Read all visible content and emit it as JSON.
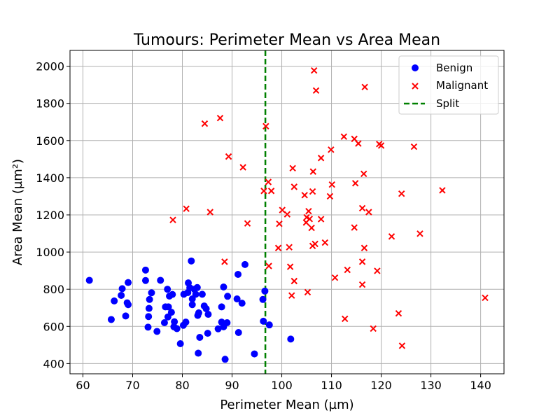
{
  "chart_data": {
    "type": "scatter",
    "title": "Tumours: Perimeter Mean vs Area Mean",
    "xlabel": "Perimeter Mean (µm)",
    "ylabel": "Area Mean (µm²)",
    "xlim": [
      57.4,
      144.7
    ],
    "ylim": [
      345,
      2085
    ],
    "xticks": [
      60,
      70,
      80,
      90,
      100,
      110,
      120,
      130,
      140
    ],
    "yticks": [
      400,
      600,
      800,
      1000,
      1200,
      1400,
      1600,
      1800,
      2000
    ],
    "grid": true,
    "legend_position": "top-right",
    "split": {
      "name": "Split",
      "x": 96.7,
      "color": "#008000"
    },
    "series": [
      {
        "name": "Benign",
        "marker": "circle",
        "color": "#0000ff",
        "points": [
          [
            61.3,
            848
          ],
          [
            65.7,
            637
          ],
          [
            66.3,
            737
          ],
          [
            67.7,
            767
          ],
          [
            67.9,
            803
          ],
          [
            68.6,
            656
          ],
          [
            68.9,
            727
          ],
          [
            69.1,
            717
          ],
          [
            69.1,
            836
          ],
          [
            72.6,
            903
          ],
          [
            72.6,
            847
          ],
          [
            73.1,
            596
          ],
          [
            73.2,
            653
          ],
          [
            73.3,
            697
          ],
          [
            73.4,
            745
          ],
          [
            73.8,
            781
          ],
          [
            74.9,
            573
          ],
          [
            75.6,
            848
          ],
          [
            76.4,
            620
          ],
          [
            76.6,
            705
          ],
          [
            77.0,
            800
          ],
          [
            77.1,
            651
          ],
          [
            77.2,
            705
          ],
          [
            77.4,
            763
          ],
          [
            77.8,
            676
          ],
          [
            78.0,
            772
          ],
          [
            78.3,
            598
          ],
          [
            78.4,
            625
          ],
          [
            78.9,
            588
          ],
          [
            79.6,
            507
          ],
          [
            80.2,
            606
          ],
          [
            80.3,
            773
          ],
          [
            80.7,
            623
          ],
          [
            81.1,
            782
          ],
          [
            81.2,
            834
          ],
          [
            81.5,
            808
          ],
          [
            81.8,
            952
          ],
          [
            82.0,
            748
          ],
          [
            82.0,
            717
          ],
          [
            82.4,
            800
          ],
          [
            82.7,
            773
          ],
          [
            83.0,
            809
          ],
          [
            83.1,
            659
          ],
          [
            83.2,
            456
          ],
          [
            83.3,
            673
          ],
          [
            83.5,
            541
          ],
          [
            84.0,
            773
          ],
          [
            84.4,
            710
          ],
          [
            84.8,
            695
          ],
          [
            85.1,
            563
          ],
          [
            85.2,
            665
          ],
          [
            87.2,
            587
          ],
          [
            87.9,
            623
          ],
          [
            87.9,
            705
          ],
          [
            88.3,
            812
          ],
          [
            88.3,
            598
          ],
          [
            88.6,
            423
          ],
          [
            89.0,
            620
          ],
          [
            89.1,
            762
          ],
          [
            91.0,
            748
          ],
          [
            91.2,
            880
          ],
          [
            91.3,
            567
          ],
          [
            92.0,
            725
          ],
          [
            92.6,
            933
          ],
          [
            94.5,
            452
          ],
          [
            96.2,
            745
          ],
          [
            96.3,
            628
          ],
          [
            96.6,
            790
          ],
          [
            97.5,
            608
          ],
          [
            101.8,
            532
          ]
        ]
      },
      {
        "name": "Malignant",
        "marker": "x",
        "color": "#ff0000",
        "points": [
          [
            106.5,
            1977
          ],
          [
            106.9,
            1869
          ],
          [
            116.7,
            1888
          ],
          [
            84.5,
            1691
          ],
          [
            87.6,
            1721
          ],
          [
            96.8,
            1677
          ],
          [
            112.5,
            1621
          ],
          [
            114.6,
            1609
          ],
          [
            115.4,
            1584
          ],
          [
            119.6,
            1581
          ],
          [
            120.0,
            1573
          ],
          [
            126.6,
            1567
          ],
          [
            109.9,
            1551
          ],
          [
            107.9,
            1506
          ],
          [
            89.3,
            1514
          ],
          [
            92.2,
            1456
          ],
          [
            102.2,
            1451
          ],
          [
            106.3,
            1433
          ],
          [
            116.5,
            1421
          ],
          [
            97.3,
            1377
          ],
          [
            96.4,
            1329
          ],
          [
            97.9,
            1329
          ],
          [
            102.5,
            1351
          ],
          [
            104.6,
            1306
          ],
          [
            106.2,
            1326
          ],
          [
            110.1,
            1363
          ],
          [
            109.7,
            1300
          ],
          [
            114.8,
            1370
          ],
          [
            124.1,
            1314
          ],
          [
            132.3,
            1332
          ],
          [
            80.8,
            1233
          ],
          [
            85.6,
            1215
          ],
          [
            78.1,
            1173
          ],
          [
            93.1,
            1154
          ],
          [
            100.1,
            1226
          ],
          [
            101.1,
            1203
          ],
          [
            99.5,
            1152
          ],
          [
            105.4,
            1220
          ],
          [
            105.0,
            1187
          ],
          [
            105.6,
            1178
          ],
          [
            104.9,
            1159
          ],
          [
            106.0,
            1130
          ],
          [
            107.9,
            1177
          ],
          [
            116.2,
            1236
          ],
          [
            117.5,
            1215
          ],
          [
            114.6,
            1132
          ],
          [
            122.1,
            1084
          ],
          [
            127.8,
            1099
          ],
          [
            99.3,
            1022
          ],
          [
            101.5,
            1026
          ],
          [
            106.2,
            1033
          ],
          [
            106.7,
            1044
          ],
          [
            108.7,
            1051
          ],
          [
            116.6,
            1022
          ],
          [
            88.5,
            948
          ],
          [
            97.4,
            925
          ],
          [
            101.7,
            921
          ],
          [
            116.2,
            948
          ],
          [
            113.2,
            904
          ],
          [
            119.2,
            899
          ],
          [
            110.7,
            862
          ],
          [
            102.5,
            844
          ],
          [
            116.2,
            825
          ],
          [
            102.0,
            766
          ],
          [
            105.2,
            784
          ],
          [
            140.9,
            754
          ],
          [
            123.5,
            670
          ],
          [
            112.7,
            641
          ],
          [
            118.4,
            588
          ],
          [
            124.2,
            496
          ]
        ]
      }
    ]
  }
}
